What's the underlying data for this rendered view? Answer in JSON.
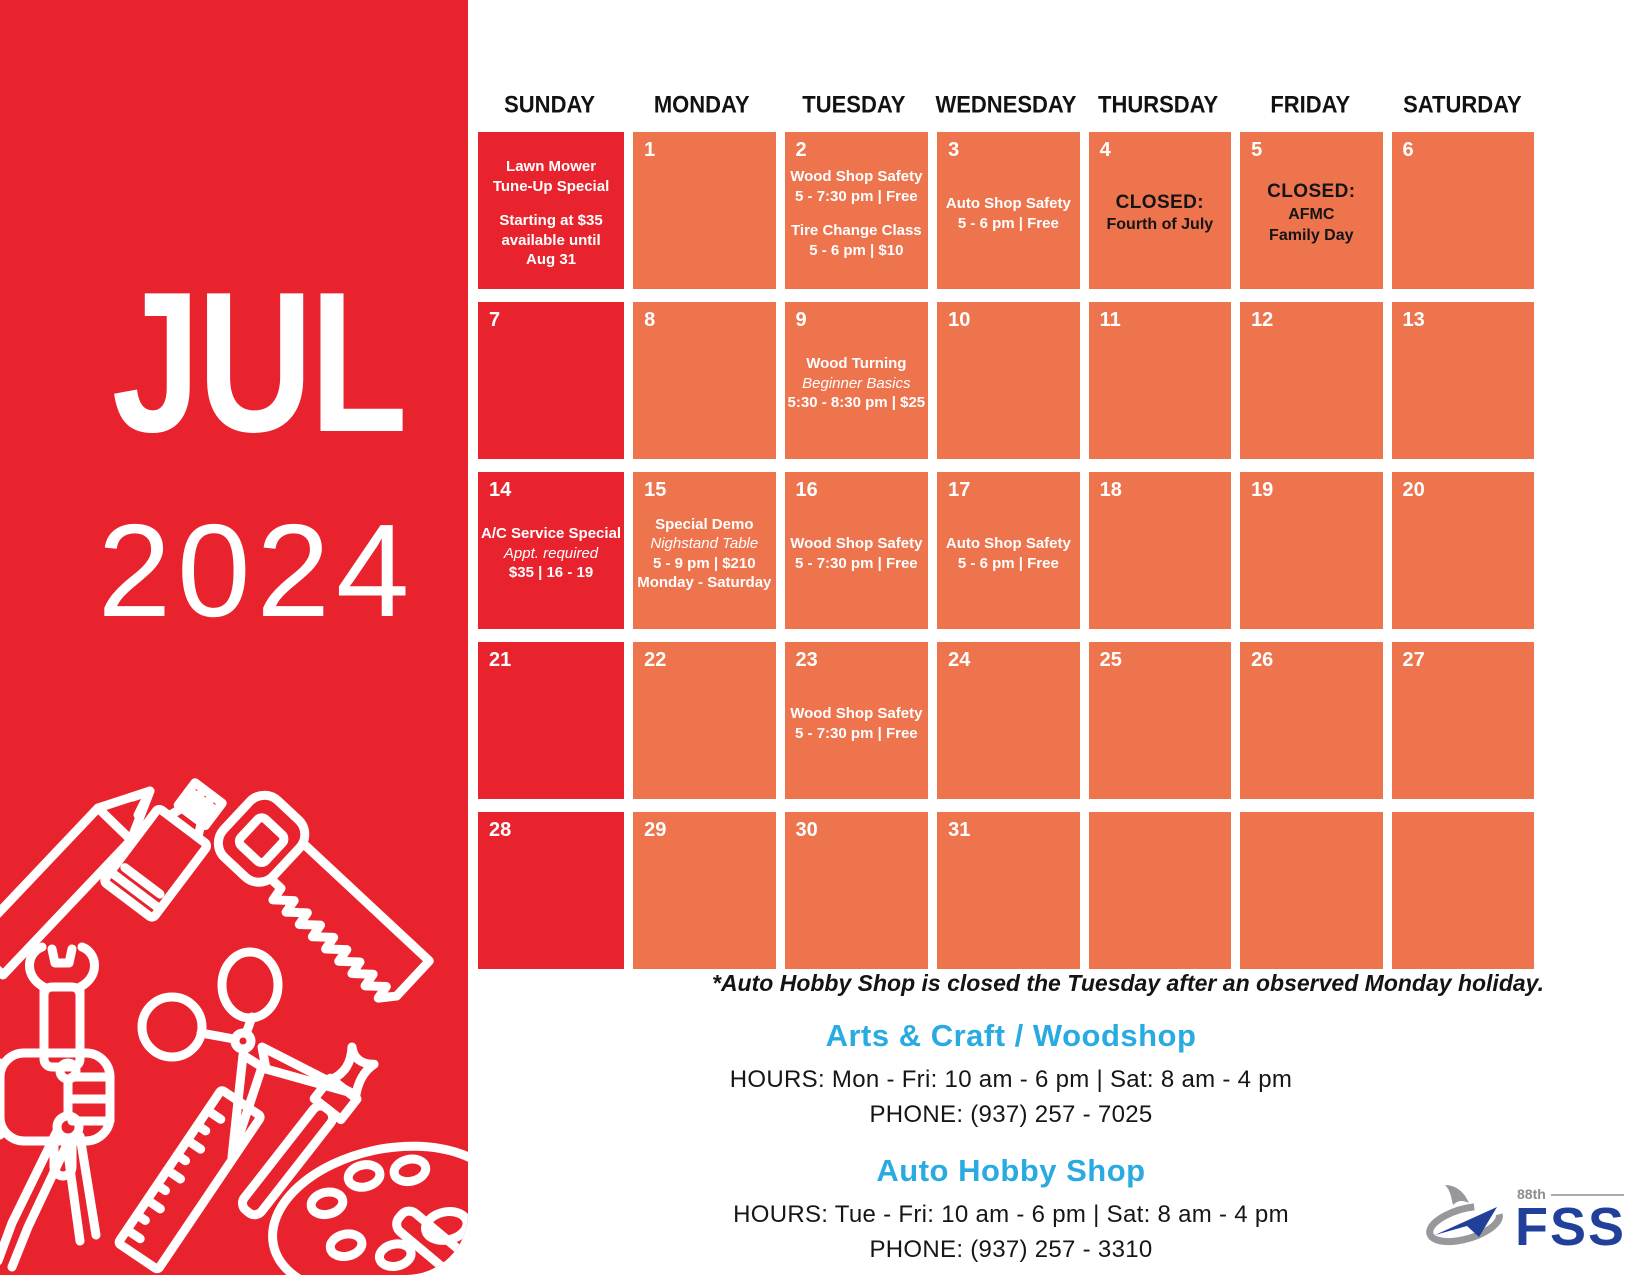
{
  "left_panel": {
    "month": "JUL",
    "year": "2024"
  },
  "colors": {
    "red": "#E8232D",
    "orange": "#EE744E",
    "cyan": "#29ABE2",
    "navy": "#21409A",
    "gray": "#97979C"
  },
  "calendar": {
    "weekday_headers": [
      "SUNDAY",
      "MONDAY",
      "TUESDAY",
      "WEDNESDAY",
      "THURSDAY",
      "FRIDAY",
      "SATURDAY"
    ],
    "weeks": [
      [
        {
          "date": "",
          "variant": "red",
          "lines": [
            {
              "t": "Lawn Mower",
              "s": "b"
            },
            {
              "t": "Tune-Up Special",
              "s": "b"
            },
            {
              "t": "",
              "s": "gap"
            },
            {
              "t": "Starting at $35",
              "s": "b"
            },
            {
              "t": "available until",
              "s": "b"
            },
            {
              "t": "Aug 31",
              "s": "b"
            }
          ]
        },
        {
          "date": "1",
          "variant": "orange",
          "lines": []
        },
        {
          "date": "2",
          "variant": "orange",
          "lines": [
            {
              "t": "Wood Shop Safety",
              "s": "b"
            },
            {
              "t": "5 - 7:30 pm | Free",
              "s": "b"
            },
            {
              "t": "",
              "s": "gap"
            },
            {
              "t": "Tire Change Class",
              "s": "b"
            },
            {
              "t": "5 - 6 pm | $10",
              "s": "b"
            }
          ]
        },
        {
          "date": "3",
          "variant": "orange",
          "lines": [
            {
              "t": "Auto Shop Safety",
              "s": "b"
            },
            {
              "t": "5 - 6 pm | Free",
              "s": "b"
            }
          ]
        },
        {
          "date": "4",
          "variant": "orange",
          "lines": [
            {
              "t": "CLOSED:",
              "s": "kb"
            },
            {
              "t": "Fourth of July",
              "s": "k"
            }
          ]
        },
        {
          "date": "5",
          "variant": "orange",
          "lines": [
            {
              "t": "CLOSED:",
              "s": "kb"
            },
            {
              "t": "AFMC",
              "s": "k"
            },
            {
              "t": "Family Day",
              "s": "k"
            }
          ]
        },
        {
          "date": "6",
          "variant": "orange",
          "lines": []
        }
      ],
      [
        {
          "date": "7",
          "variant": "red",
          "lines": []
        },
        {
          "date": "8",
          "variant": "orange",
          "lines": []
        },
        {
          "date": "9",
          "variant": "orange",
          "lines": [
            {
              "t": "Wood Turning",
              "s": "b"
            },
            {
              "t": "Beginner Basics",
              "s": "i"
            },
            {
              "t": "5:30 - 8:30 pm | $25",
              "s": "b"
            }
          ]
        },
        {
          "date": "10",
          "variant": "orange",
          "lines": []
        },
        {
          "date": "11",
          "variant": "orange",
          "lines": []
        },
        {
          "date": "12",
          "variant": "orange",
          "lines": []
        },
        {
          "date": "13",
          "variant": "orange",
          "lines": []
        }
      ],
      [
        {
          "date": "14",
          "variant": "red",
          "lines": [
            {
              "t": "A/C Service Special",
              "s": "b"
            },
            {
              "t": "Appt. required",
              "s": "i"
            },
            {
              "t": "$35 | 16 - 19",
              "s": "b"
            }
          ]
        },
        {
          "date": "15",
          "variant": "orange",
          "lines": [
            {
              "t": "Special Demo",
              "s": "b"
            },
            {
              "t": "Nighstand Table",
              "s": "i"
            },
            {
              "t": "5 - 9 pm | $210",
              "s": "b"
            },
            {
              "t": "Monday - Saturday",
              "s": "b"
            }
          ]
        },
        {
          "date": "16",
          "variant": "orange",
          "lines": [
            {
              "t": "Wood Shop Safety",
              "s": "b"
            },
            {
              "t": "5 - 7:30 pm | Free",
              "s": "b"
            }
          ]
        },
        {
          "date": "17",
          "variant": "orange",
          "lines": [
            {
              "t": "Auto Shop Safety",
              "s": "b"
            },
            {
              "t": "5 - 6 pm | Free",
              "s": "b"
            }
          ]
        },
        {
          "date": "18",
          "variant": "orange",
          "lines": []
        },
        {
          "date": "19",
          "variant": "orange",
          "lines": []
        },
        {
          "date": "20",
          "variant": "orange",
          "lines": []
        }
      ],
      [
        {
          "date": "21",
          "variant": "red",
          "lines": []
        },
        {
          "date": "22",
          "variant": "orange",
          "lines": []
        },
        {
          "date": "23",
          "variant": "orange",
          "lines": [
            {
              "t": "Wood Shop Safety",
              "s": "b"
            },
            {
              "t": "5 - 7:30 pm | Free",
              "s": "b"
            }
          ]
        },
        {
          "date": "24",
          "variant": "orange",
          "lines": []
        },
        {
          "date": "25",
          "variant": "orange",
          "lines": []
        },
        {
          "date": "26",
          "variant": "orange",
          "lines": []
        },
        {
          "date": "27",
          "variant": "orange",
          "lines": []
        }
      ],
      [
        {
          "date": "28",
          "variant": "red",
          "lines": []
        },
        {
          "date": "29",
          "variant": "orange",
          "lines": []
        },
        {
          "date": "30",
          "variant": "orange",
          "lines": []
        },
        {
          "date": "31",
          "variant": "orange",
          "lines": []
        },
        {
          "date": "",
          "variant": "orange",
          "lines": []
        },
        {
          "date": "",
          "variant": "orange",
          "lines": []
        },
        {
          "date": "",
          "variant": "orange",
          "lines": []
        }
      ]
    ]
  },
  "footnote": "*Auto Hobby Shop is closed the Tuesday after an observed Monday holiday.",
  "sections": [
    {
      "title": "Arts & Craft / Woodshop",
      "hours": "HOURS: Mon - Fri: 10 am - 6 pm | Sat: 8 am - 4 pm",
      "phone": "PHONE: (937) 257 - 7025"
    },
    {
      "title": "Auto Hobby Shop",
      "hours": "HOURS: Tue - Fri: 10 am - 6 pm | Sat: 8 am - 4 pm",
      "phone": "PHONE: (937) 257 - 3310"
    }
  ],
  "logo": {
    "unit": "88th",
    "org": "FSS"
  }
}
